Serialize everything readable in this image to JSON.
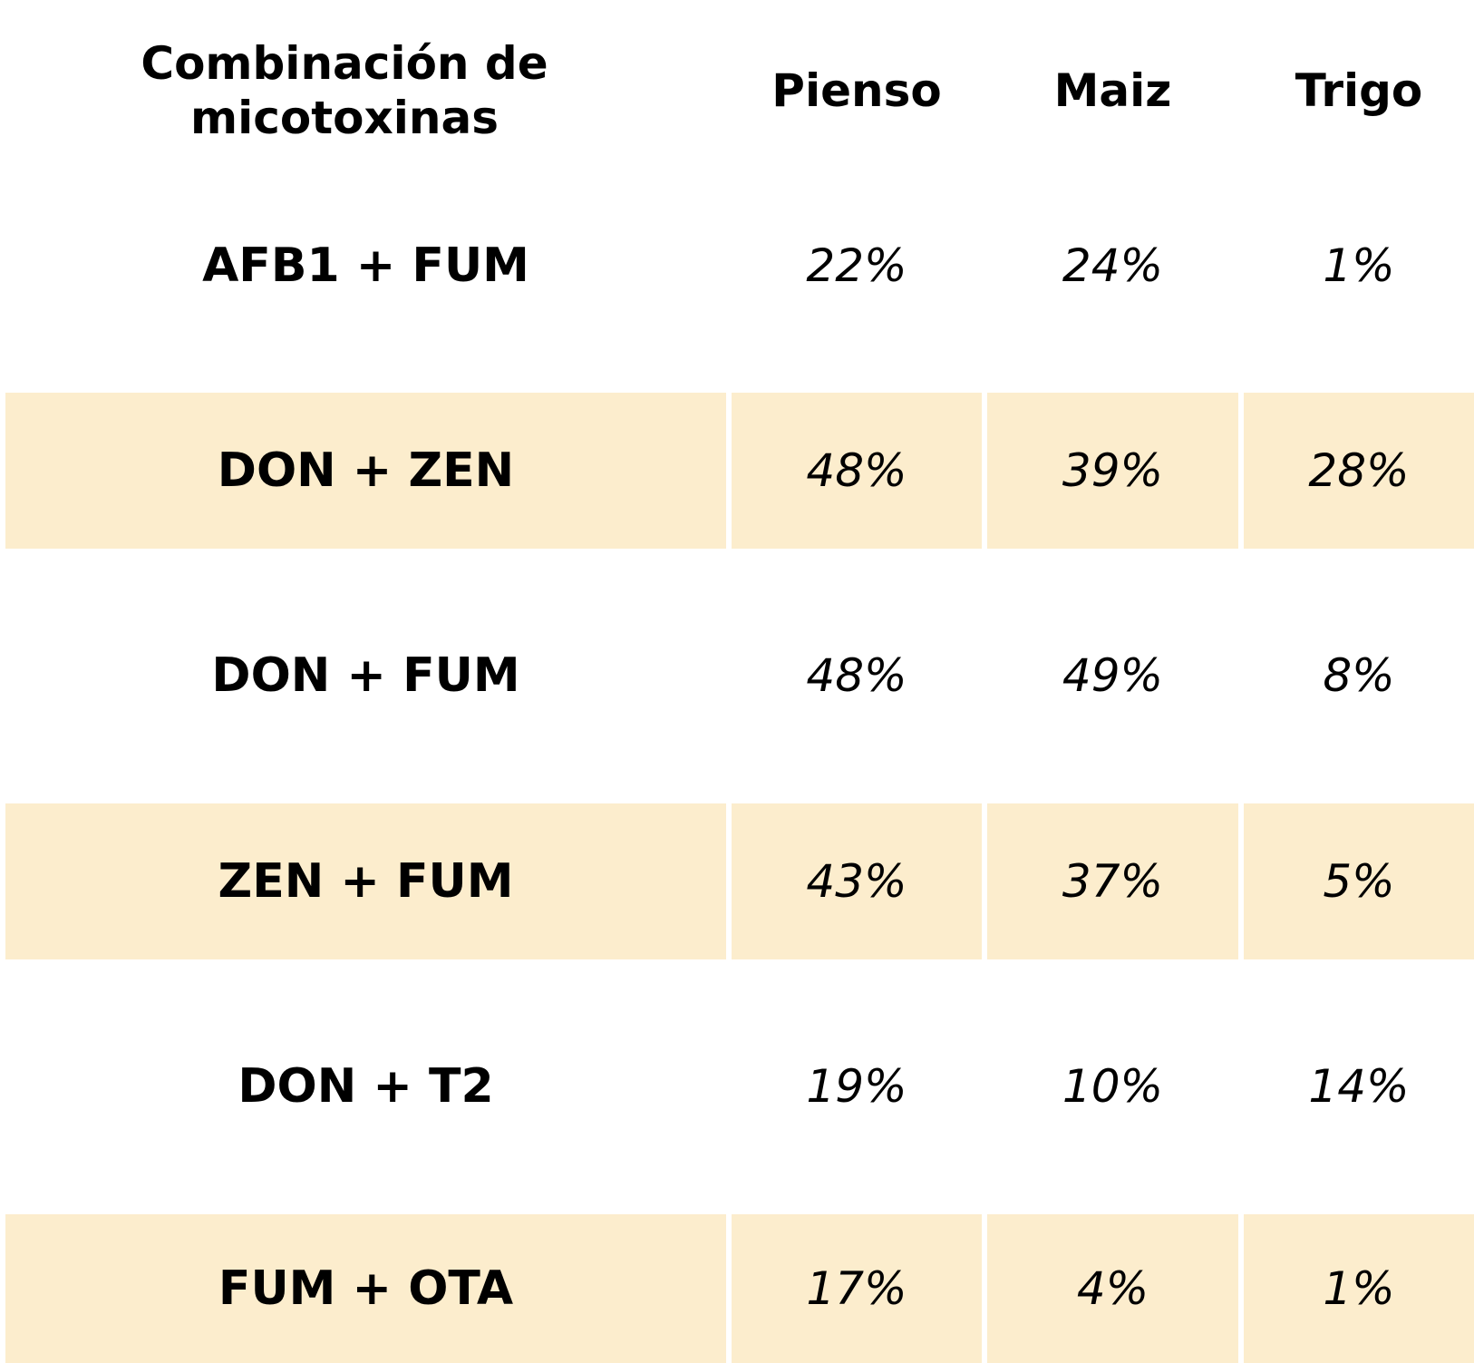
{
  "header": {
    "title": "Combinación de micotoxinas",
    "columns": [
      "Pienso",
      "Maiz",
      "Trigo"
    ]
  },
  "table": {
    "rows": [
      [
        "AFB1 + FUM",
        "22%",
        "24%",
        "1%"
      ],
      [
        "DON + ZEN",
        "48%",
        "39%",
        "28%"
      ],
      [
        "DON + FUM",
        "48%",
        "49%",
        "8%"
      ],
      [
        "ZEN + FUM",
        "43%",
        "37%",
        "5%"
      ],
      [
        "DON + T2",
        "19%",
        "10%",
        "14%"
      ],
      [
        "FUM + OTA",
        "17%",
        "4%",
        "1%"
      ]
    ]
  }
}
